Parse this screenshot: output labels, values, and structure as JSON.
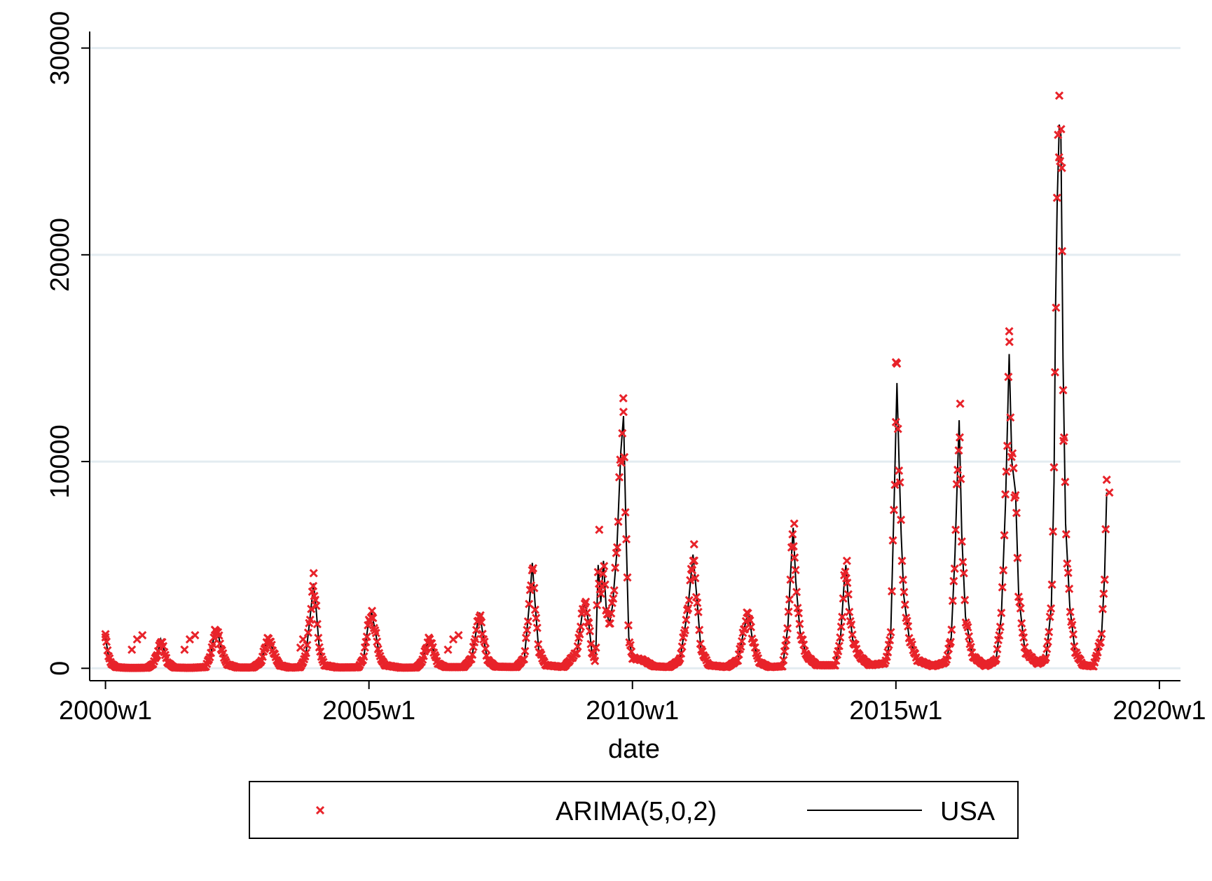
{
  "colors": {
    "arima_marker": "#e8232a",
    "usa_line": "#000000",
    "gridline": "#e3ecf1",
    "background": "#ffffff"
  },
  "chart_data": {
    "type": "line",
    "title": "",
    "xlabel": "date",
    "ylabel": "",
    "x_unit": "year (fractional, weekly data)",
    "xlim": [
      1999.7,
      2020.4
    ],
    "ylim": [
      -600,
      30800
    ],
    "x_ticks": [
      2000,
      2005,
      2010,
      2015,
      2020
    ],
    "x_tick_labels": [
      "2000w1",
      "2005w1",
      "2010w1",
      "2015w1",
      "2020w1"
    ],
    "y_ticks": [
      0,
      10000,
      20000,
      30000
    ],
    "y_tick_labels": [
      "0",
      "10000",
      "20000",
      "30000"
    ],
    "grid": true,
    "legend_position": "bottom",
    "legend": [
      {
        "label": "ARIMA(5,0,2)",
        "marker": "x",
        "color": "#e8232a"
      },
      {
        "label": "USA",
        "marker": "line",
        "color": "#000000"
      }
    ],
    "season_peaks": [
      {
        "x": 2001.05,
        "y": 1400
      },
      {
        "x": 2002.1,
        "y": 1900
      },
      {
        "x": 2003.1,
        "y": 1500
      },
      {
        "x": 2003.95,
        "y": 4100
      },
      {
        "x": 2005.05,
        "y": 2700
      },
      {
        "x": 2006.15,
        "y": 1500
      },
      {
        "x": 2007.1,
        "y": 2700
      },
      {
        "x": 2008.1,
        "y": 5100
      },
      {
        "x": 2009.1,
        "y": 3200
      },
      {
        "x": 2009.4,
        "y": 5200
      },
      {
        "x": 2009.83,
        "y": 12200
      },
      {
        "x": 2011.15,
        "y": 5500
      },
      {
        "x": 2012.2,
        "y": 2800
      },
      {
        "x": 2013.05,
        "y": 6800
      },
      {
        "x": 2014.05,
        "y": 5000
      },
      {
        "x": 2015.02,
        "y": 13800
      },
      {
        "x": 2016.2,
        "y": 12000
      },
      {
        "x": 2017.15,
        "y": 15200
      },
      {
        "x": 2018.1,
        "y": 26300
      },
      {
        "x": 2019.0,
        "y": 8500
      }
    ],
    "series": [
      {
        "name": "USA",
        "style": "line",
        "points": [
          [
            2000.0,
            1500
          ],
          [
            2000.05,
            700
          ],
          [
            2000.1,
            250
          ],
          [
            2000.2,
            60
          ],
          [
            2000.4,
            20
          ],
          [
            2000.6,
            20
          ],
          [
            2000.8,
            30
          ],
          [
            2000.9,
            200
          ],
          [
            2001.0,
            800
          ],
          [
            2001.05,
            1400
          ],
          [
            2001.1,
            1000
          ],
          [
            2001.17,
            300
          ],
          [
            2001.3,
            40
          ],
          [
            2001.6,
            20
          ],
          [
            2001.9,
            60
          ],
          [
            2002.0,
            700
          ],
          [
            2002.07,
            1700
          ],
          [
            2002.12,
            1900
          ],
          [
            2002.2,
            900
          ],
          [
            2002.3,
            200
          ],
          [
            2002.5,
            40
          ],
          [
            2002.8,
            40
          ],
          [
            2002.95,
            300
          ],
          [
            2003.05,
            1200
          ],
          [
            2003.1,
            1500
          ],
          [
            2003.2,
            700
          ],
          [
            2003.3,
            150
          ],
          [
            2003.5,
            30
          ],
          [
            2003.7,
            60
          ],
          [
            2003.8,
            600
          ],
          [
            2003.88,
            2400
          ],
          [
            2003.95,
            4100
          ],
          [
            2004.0,
            2800
          ],
          [
            2004.06,
            900
          ],
          [
            2004.15,
            150
          ],
          [
            2004.4,
            40
          ],
          [
            2004.8,
            50
          ],
          [
            2004.9,
            500
          ],
          [
            2004.98,
            2000
          ],
          [
            2005.05,
            2700
          ],
          [
            2005.12,
            1800
          ],
          [
            2005.2,
            600
          ],
          [
            2005.3,
            150
          ],
          [
            2005.6,
            30
          ],
          [
            2005.9,
            40
          ],
          [
            2006.0,
            300
          ],
          [
            2006.1,
            1100
          ],
          [
            2006.15,
            1500
          ],
          [
            2006.22,
            900
          ],
          [
            2006.3,
            250
          ],
          [
            2006.45,
            60
          ],
          [
            2006.8,
            60
          ],
          [
            2006.95,
            500
          ],
          [
            2007.05,
            2000
          ],
          [
            2007.1,
            2700
          ],
          [
            2007.17,
            1500
          ],
          [
            2007.25,
            400
          ],
          [
            2007.4,
            80
          ],
          [
            2007.8,
            60
          ],
          [
            2007.95,
            500
          ],
          [
            2008.05,
            3300
          ],
          [
            2008.1,
            5100
          ],
          [
            2008.15,
            3200
          ],
          [
            2008.22,
            900
          ],
          [
            2008.35,
            150
          ],
          [
            2008.7,
            60
          ],
          [
            2008.95,
            800
          ],
          [
            2009.05,
            2700
          ],
          [
            2009.1,
            3200
          ],
          [
            2009.17,
            2200
          ],
          [
            2009.23,
            800
          ],
          [
            2009.3,
            300
          ],
          [
            2009.35,
            5000
          ],
          [
            2009.4,
            3200
          ],
          [
            2009.45,
            5200
          ],
          [
            2009.5,
            3000
          ],
          [
            2009.56,
            2100
          ],
          [
            2009.62,
            3000
          ],
          [
            2009.7,
            5500
          ],
          [
            2009.78,
            10500
          ],
          [
            2009.83,
            12200
          ],
          [
            2009.88,
            6500
          ],
          [
            2009.93,
            1500
          ],
          [
            2010.0,
            500
          ],
          [
            2010.2,
            400
          ],
          [
            2010.4,
            100
          ],
          [
            2010.7,
            60
          ],
          [
            2010.9,
            400
          ],
          [
            2011.05,
            2800
          ],
          [
            2011.15,
            5500
          ],
          [
            2011.22,
            3500
          ],
          [
            2011.3,
            900
          ],
          [
            2011.45,
            150
          ],
          [
            2011.8,
            60
          ],
          [
            2012.0,
            400
          ],
          [
            2012.12,
            1900
          ],
          [
            2012.2,
            2800
          ],
          [
            2012.27,
            1500
          ],
          [
            2012.4,
            300
          ],
          [
            2012.6,
            60
          ],
          [
            2012.85,
            100
          ],
          [
            2012.95,
            2000
          ],
          [
            2013.02,
            5500
          ],
          [
            2013.05,
            6800
          ],
          [
            2013.1,
            4200
          ],
          [
            2013.18,
            1800
          ],
          [
            2013.3,
            600
          ],
          [
            2013.5,
            150
          ],
          [
            2013.85,
            150
          ],
          [
            2013.95,
            1500
          ],
          [
            2014.02,
            4200
          ],
          [
            2014.05,
            5000
          ],
          [
            2014.1,
            3200
          ],
          [
            2014.18,
            1400
          ],
          [
            2014.3,
            600
          ],
          [
            2014.5,
            150
          ],
          [
            2014.8,
            250
          ],
          [
            2014.9,
            1500
          ],
          [
            2014.97,
            8500
          ],
          [
            2015.02,
            13800
          ],
          [
            2015.06,
            10000
          ],
          [
            2015.1,
            6500
          ],
          [
            2015.15,
            3500
          ],
          [
            2015.25,
            1500
          ],
          [
            2015.4,
            400
          ],
          [
            2015.7,
            100
          ],
          [
            2015.95,
            300
          ],
          [
            2016.05,
            1500
          ],
          [
            2016.12,
            5500
          ],
          [
            2016.2,
            12000
          ],
          [
            2016.25,
            6500
          ],
          [
            2016.32,
            2500
          ],
          [
            2016.45,
            600
          ],
          [
            2016.7,
            100
          ],
          [
            2016.9,
            400
          ],
          [
            2017.0,
            2500
          ],
          [
            2017.08,
            8000
          ],
          [
            2017.15,
            15200
          ],
          [
            2017.2,
            10000
          ],
          [
            2017.27,
            8500
          ],
          [
            2017.33,
            3500
          ],
          [
            2017.45,
            800
          ],
          [
            2017.7,
            200
          ],
          [
            2017.85,
            500
          ],
          [
            2017.95,
            3000
          ],
          [
            2018.0,
            9000
          ],
          [
            2018.03,
            17500
          ],
          [
            2018.06,
            22500
          ],
          [
            2018.1,
            26300
          ],
          [
            2018.13,
            25800
          ],
          [
            2018.17,
            15000
          ],
          [
            2018.22,
            7000
          ],
          [
            2018.3,
            3000
          ],
          [
            2018.4,
            800
          ],
          [
            2018.55,
            150
          ],
          [
            2018.75,
            100
          ],
          [
            2018.9,
            1500
          ],
          [
            2018.96,
            4500
          ],
          [
            2019.0,
            8500
          ]
        ]
      },
      {
        "name": "ARIMA(5,0,2)",
        "style": "x-markers",
        "note_range": [
          2000.0,
          2019.0
        ],
        "extra_points": [
          [
            2000.0,
            1650
          ],
          [
            2000.5,
            900
          ],
          [
            2000.6,
            1400
          ],
          [
            2000.7,
            1600
          ],
          [
            2001.5,
            900
          ],
          [
            2001.6,
            1400
          ],
          [
            2001.7,
            1600
          ],
          [
            2003.7,
            1000
          ],
          [
            2003.75,
            1400
          ],
          [
            2003.95,
            4600
          ],
          [
            2006.5,
            900
          ],
          [
            2006.6,
            1400
          ],
          [
            2006.7,
            1600
          ],
          [
            2009.37,
            6700
          ],
          [
            2009.83,
            12400
          ],
          [
            2011.17,
            6000
          ],
          [
            2013.07,
            7000
          ],
          [
            2014.07,
            5200
          ],
          [
            2015.0,
            14800
          ],
          [
            2016.22,
            12800
          ],
          [
            2017.15,
            16300
          ],
          [
            2018.1,
            27700
          ],
          [
            2018.15,
            24200
          ],
          [
            2018.18,
            11000
          ],
          [
            2019.05,
            8500
          ]
        ]
      }
    ]
  }
}
